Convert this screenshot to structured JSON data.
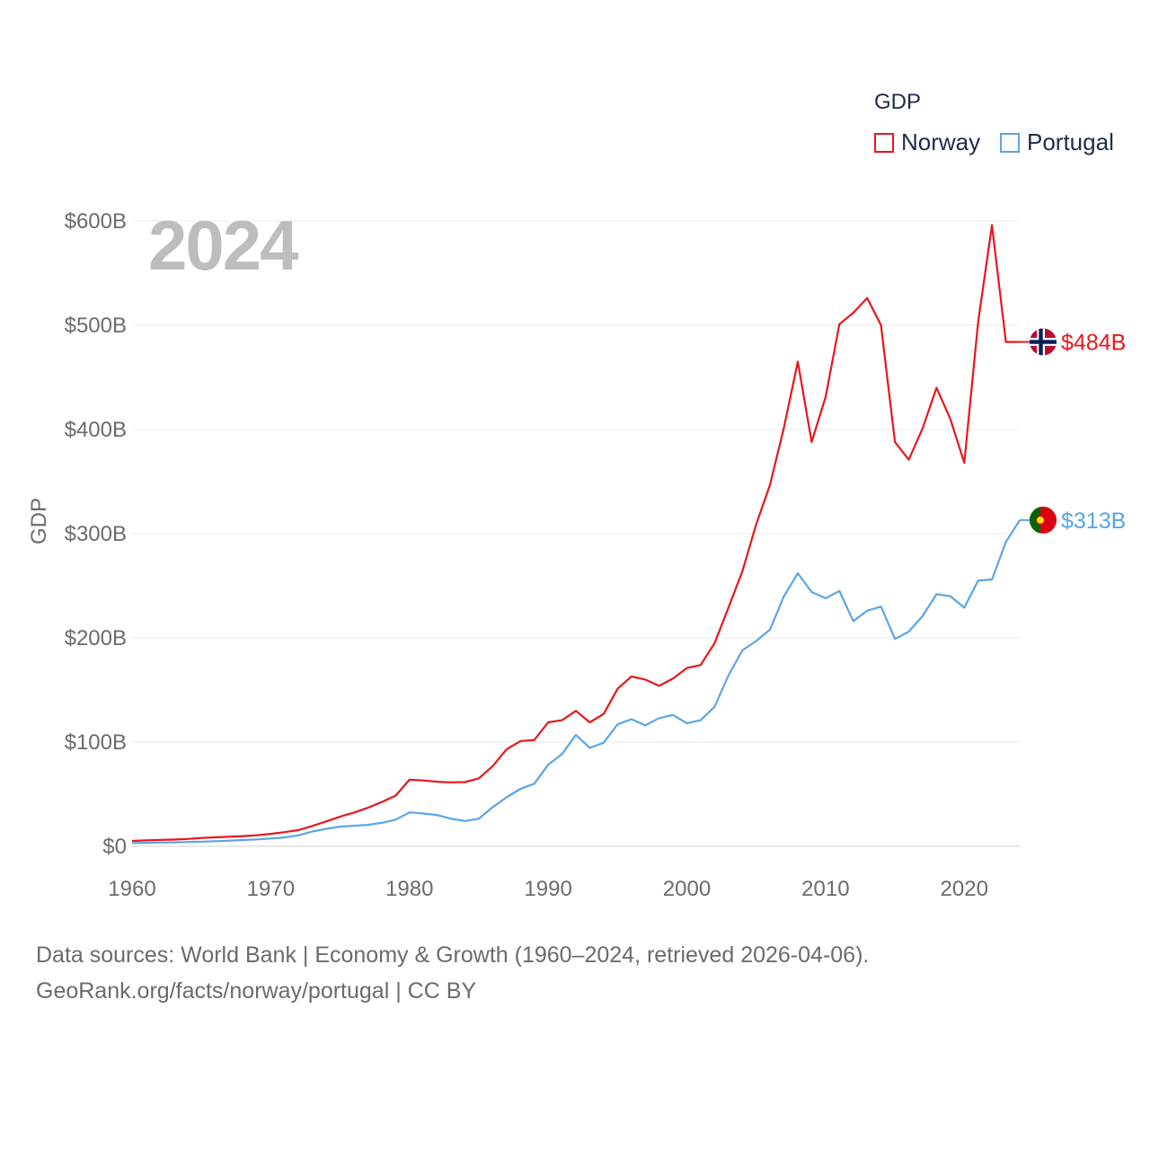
{
  "chart_data": {
    "type": "line",
    "legend_title": "GDP",
    "legend_position": "top-right",
    "year_label": "2024",
    "ylabel": "GDP",
    "xlabel": "",
    "xlim": [
      1960,
      2024
    ],
    "ylim": [
      0,
      600
    ],
    "y_ticks": [
      0,
      100,
      200,
      300,
      400,
      500,
      600
    ],
    "y_tick_labels": [
      "$0",
      "$100B",
      "$200B",
      "$300B",
      "$400B",
      "$500B",
      "$600B"
    ],
    "x_ticks": [
      1960,
      1970,
      1980,
      1990,
      2000,
      2010,
      2020
    ],
    "x_tick_labels": [
      "1960",
      "1970",
      "1980",
      "1990",
      "2000",
      "2010",
      "2020"
    ],
    "grid": true,
    "units": "billions USD",
    "series": [
      {
        "name": "Norway",
        "color": "#e8161b",
        "end_label": "$484B",
        "flag": "norway-flag-icon",
        "x": [
          1960,
          1961,
          1962,
          1963,
          1964,
          1965,
          1966,
          1967,
          1968,
          1969,
          1970,
          1971,
          1972,
          1973,
          1974,
          1975,
          1976,
          1977,
          1978,
          1979,
          1980,
          1981,
          1982,
          1983,
          1984,
          1985,
          1986,
          1987,
          1988,
          1989,
          1990,
          1991,
          1992,
          1993,
          1994,
          1995,
          1996,
          1997,
          1998,
          1999,
          2000,
          2001,
          2002,
          2003,
          2004,
          2005,
          2006,
          2007,
          2008,
          2009,
          2010,
          2011,
          2012,
          2013,
          2014,
          2015,
          2016,
          2017,
          2018,
          2019,
          2020,
          2021,
          2022,
          2023,
          2024
        ],
        "values": [
          5.2,
          5.7,
          6.1,
          6.5,
          7.1,
          8.0,
          8.6,
          9.2,
          9.8,
          10.6,
          12.0,
          13.6,
          15.6,
          19.6,
          23.9,
          28.5,
          32.4,
          37.0,
          42.5,
          48.6,
          64.0,
          63.2,
          62.0,
          61.4,
          61.6,
          65.2,
          77.0,
          93.0,
          101.0,
          102.0,
          119.0,
          121.0,
          130.0,
          119.0,
          127.0,
          151.0,
          163.0,
          160.0,
          154.0,
          161.0,
          171.0,
          174.0,
          195.0,
          229.0,
          264.0,
          309.0,
          347.0,
          402.0,
          465.0,
          388.0,
          431.0,
          501.0,
          512.0,
          526.0,
          500.0,
          388.0,
          371.0,
          401.0,
          440.0,
          410.0,
          368.0,
          503.0,
          596.0,
          484.0,
          484.0
        ]
      },
      {
        "name": "Portugal",
        "color": "#5aa5e6",
        "end_label": "$313B",
        "flag": "portugal-flag-icon",
        "x": [
          1960,
          1961,
          1962,
          1963,
          1964,
          1965,
          1966,
          1967,
          1968,
          1969,
          1970,
          1971,
          1972,
          1973,
          1974,
          1975,
          1976,
          1977,
          1978,
          1979,
          1980,
          1981,
          1982,
          1983,
          1984,
          1985,
          1986,
          1987,
          1988,
          1989,
          1990,
          1991,
          1992,
          1993,
          1994,
          1995,
          1996,
          1997,
          1998,
          1999,
          2000,
          2001,
          2002,
          2003,
          2004,
          2005,
          2006,
          2007,
          2008,
          2009,
          2010,
          2011,
          2012,
          2013,
          2014,
          2015,
          2016,
          2017,
          2018,
          2019,
          2020,
          2021,
          2022,
          2023,
          2024
        ],
        "values": [
          3.2,
          3.4,
          3.6,
          3.8,
          4.1,
          4.5,
          4.9,
          5.4,
          6.0,
          6.6,
          7.5,
          8.5,
          10.6,
          14.2,
          16.8,
          18.9,
          19.7,
          20.6,
          22.5,
          25.6,
          32.6,
          31.5,
          30.0,
          26.5,
          24.3,
          26.5,
          37.6,
          47.0,
          55.2,
          60.1,
          78.2,
          88.6,
          107.0,
          94.5,
          99.4,
          117.0,
          122.0,
          116.0,
          123.0,
          126.0,
          118.0,
          121.0,
          134.0,
          164.0,
          188.0,
          197.0,
          208.0,
          240.0,
          262.0,
          244.0,
          238.0,
          245.0,
          216.0,
          226.0,
          230.0,
          199.0,
          206.0,
          221.0,
          242.0,
          240.0,
          229.0,
          255.0,
          256.0,
          292.0,
          313.0
        ]
      }
    ]
  },
  "footer": {
    "line1": "Data sources: World Bank | Economy & Growth (1960–2024, retrieved 2026-04-06).",
    "line2": "GeoRank.org/facts/norway/portugal | CC BY"
  }
}
